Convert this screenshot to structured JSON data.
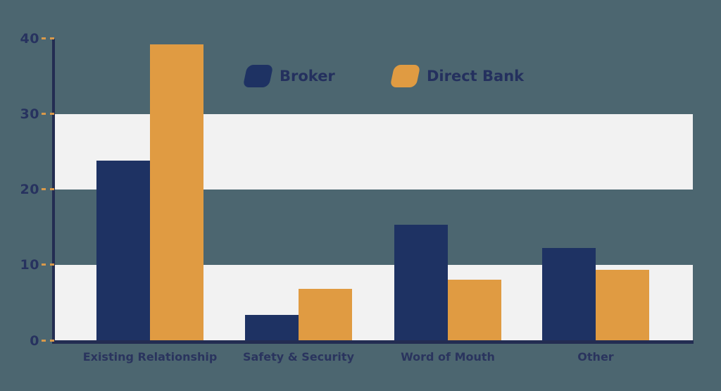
{
  "title": "",
  "colors": {
    "background": "#4c6670",
    "band": "#f2f2f2",
    "axis": "#232d52",
    "tick_dash": "#d9994a",
    "label_text": "#27325f",
    "broker": "#1e3263",
    "direct_bank": "#e09b42"
  },
  "legend": {
    "items": [
      {
        "label": "Broker",
        "color": "#1e3263",
        "swatch": "skewed-rounded-square"
      },
      {
        "label": "Direct Bank",
        "color": "#e09b42",
        "swatch": "skewed-rounded-square"
      }
    ]
  },
  "chart_data": {
    "type": "bar",
    "title": "",
    "xlabel": "",
    "ylabel": "",
    "categories": [
      "Existing Relationship",
      "Safety & Security",
      "Word of Mouth",
      "Other"
    ],
    "series": [
      {
        "name": "Broker",
        "color": "#1e3263",
        "values": [
          23.8,
          3.4,
          15.3,
          12.3
        ]
      },
      {
        "name": "Direct Bank",
        "color": "#e09b42",
        "values": [
          39.2,
          6.9,
          8.1,
          9.4
        ]
      }
    ],
    "ylim": [
      0,
      40
    ],
    "yticks": [
      0,
      10,
      20,
      30,
      40
    ],
    "ytick_labels": [
      "0",
      "10",
      "20",
      "30",
      "40"
    ],
    "band_ranges": [
      [
        0,
        10
      ],
      [
        20,
        30
      ]
    ],
    "grid": "alternating light horizontal bands",
    "legend_position": "top-center"
  }
}
